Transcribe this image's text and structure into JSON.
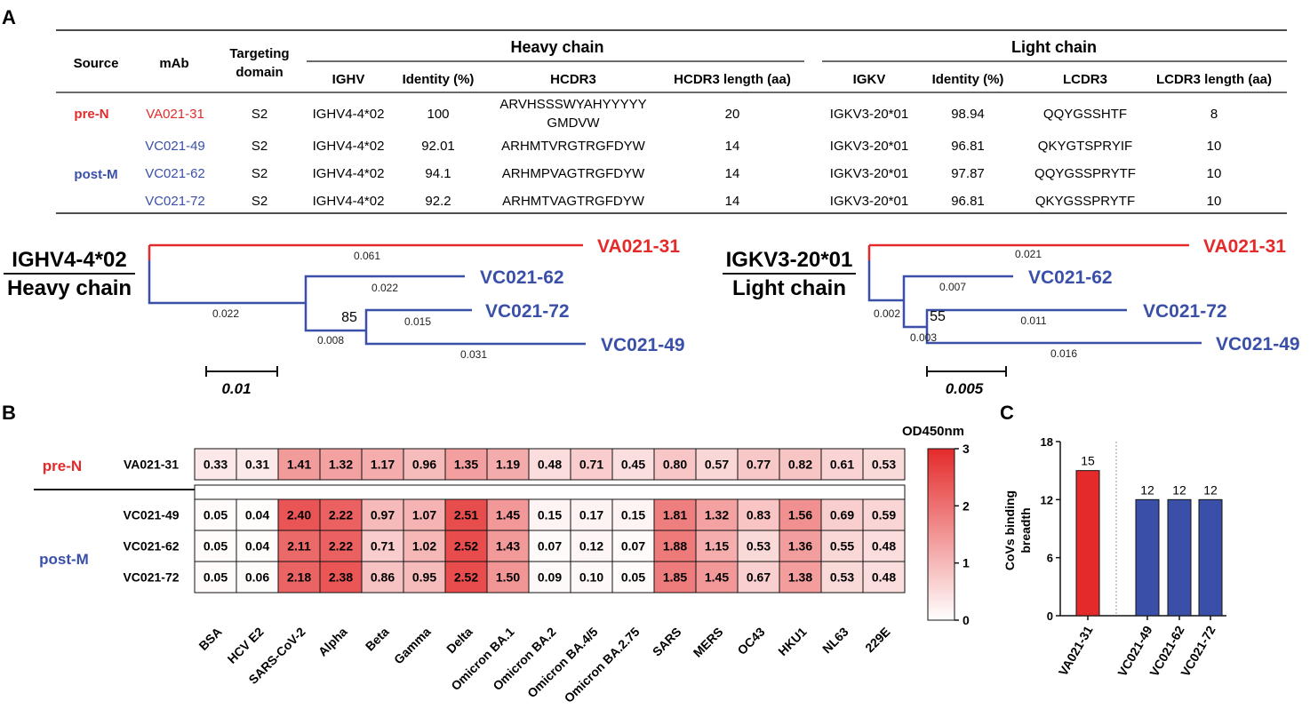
{
  "colors": {
    "pre": "#e42a2a",
    "post": "#3a4fa8",
    "black": "#111111"
  },
  "panel_labels": {
    "a": "A",
    "b": "B",
    "c": "C"
  },
  "table": {
    "headers": {
      "source": "Source",
      "mab": "mAb",
      "targeting_1": "Targeting",
      "targeting_2": "domain",
      "heavy": "Heavy chain",
      "light": "Light chain",
      "ighv": "IGHV",
      "h_identity": "Identity (%)",
      "hcdr3": "HCDR3",
      "hcdr3_len": "HCDR3 length (aa)",
      "igkv": "IGKV",
      "l_identity": "Identity (%)",
      "lcdr3": "LCDR3",
      "lcdr3_len": "LCDR3 length (aa)"
    },
    "groups": {
      "pre": "pre-N",
      "post": "post-M"
    },
    "rows": [
      {
        "mab": "VA021-31",
        "domain": "S2",
        "ighv": "IGHV4-4*02",
        "h_identity": "100",
        "hcdr3_line1": "ARVHSSSWYAHYYYYY",
        "hcdr3_line2": "GMDVW",
        "hcdr3_len": "20",
        "igkv": "IGKV3-20*01",
        "l_identity": "98.94",
        "lcdr3": "QQYGSSHTF",
        "lcdr3_len": "8"
      },
      {
        "mab": "VC021-49",
        "domain": "S2",
        "ighv": "IGHV4-4*02",
        "h_identity": "92.01",
        "hcdr3": "ARHMTVRGTRGFDYW",
        "hcdr3_len": "14",
        "igkv": "IGKV3-20*01",
        "l_identity": "96.81",
        "lcdr3": "QKYGTSPRYIF",
        "lcdr3_len": "10"
      },
      {
        "mab": "VC021-62",
        "domain": "S2",
        "ighv": "IGHV4-4*02",
        "h_identity": "94.1",
        "hcdr3": "ARHMPVAGTRGFDYW",
        "hcdr3_len": "14",
        "igkv": "IGKV3-20*01",
        "l_identity": "97.87",
        "lcdr3": "QQYGSSPRYTF",
        "lcdr3_len": "10"
      },
      {
        "mab": "VC021-72",
        "domain": "S2",
        "ighv": "IGHV4-4*02",
        "h_identity": "92.2",
        "hcdr3": "ARHMTVAGTRGFDYW",
        "hcdr3_len": "14",
        "igkv": "IGKV3-20*01",
        "l_identity": "96.81",
        "lcdr3": "QKYGSSPRYTF",
        "lcdr3_len": "10"
      }
    ]
  },
  "trees": {
    "heavy": {
      "title1": "IGHV4-4*02",
      "title2": "Heavy chain",
      "leaves": [
        "VA021-31",
        "VC021-62",
        "VC021-72",
        "VC021-49"
      ],
      "branch_labels": {
        "va31": "0.061",
        "root": "0.022",
        "vc62": "0.022",
        "inner": "0.008",
        "vc72": "0.015",
        "vc49": "0.031"
      },
      "bootstrap": "85",
      "scale": "0.01"
    },
    "light": {
      "title1": "IGKV3-20*01",
      "title2": "Light chain",
      "leaves": [
        "VA021-31",
        "VC021-62",
        "VC021-72",
        "VC021-49"
      ],
      "branch_labels": {
        "va31": "0.021",
        "root": "0.002",
        "vc62": "0.007",
        "inner": "0.003",
        "vc72": "0.011",
        "vc49": "0.016"
      },
      "bootstrap": "55",
      "scale": "0.005"
    }
  },
  "chart_data": [
    {
      "type": "heatmap",
      "title": "OD450nm",
      "groups": [
        {
          "name": "pre-N",
          "rows": [
            "VA021-31"
          ]
        },
        {
          "name": "post-M",
          "rows": [
            "VC021-49",
            "VC021-62",
            "VC021-72"
          ]
        }
      ],
      "rows": [
        "VA021-31",
        "VC021-49",
        "VC021-62",
        "VC021-72"
      ],
      "columns": [
        "BSA",
        "HCV E2",
        "SARS-CoV-2",
        "Alpha",
        "Beta",
        "Gamma",
        "Delta",
        "Omicron BA.1",
        "Omicron BA.2",
        "Omicron BA.4/5",
        "Omicron BA.2.75",
        "SARS",
        "MERS",
        "OC43",
        "HKU1",
        "NL63",
        "229E"
      ],
      "values": [
        [
          "0.33",
          "0.31",
          "1.41",
          "1.32",
          "1.17",
          "0.96",
          "1.35",
          "1.19",
          "0.48",
          "0.71",
          "0.45",
          "0.80",
          "0.57",
          "0.77",
          "0.82",
          "0.61",
          "0.53"
        ],
        [
          "0.05",
          "0.04",
          "2.40",
          "2.22",
          "0.97",
          "1.07",
          "2.51",
          "1.45",
          "0.15",
          "0.17",
          "0.15",
          "1.81",
          "1.32",
          "0.83",
          "1.56",
          "0.69",
          "0.59"
        ],
        [
          "0.05",
          "0.04",
          "2.11",
          "2.22",
          "0.71",
          "1.02",
          "2.52",
          "1.43",
          "0.07",
          "0.12",
          "0.07",
          "1.88",
          "1.15",
          "0.53",
          "1.36",
          "0.55",
          "0.48"
        ],
        [
          "0.05",
          "0.06",
          "2.18",
          "2.38",
          "0.86",
          "0.95",
          "2.52",
          "1.50",
          "0.09",
          "0.10",
          "0.05",
          "1.85",
          "1.45",
          "0.67",
          "1.38",
          "0.53",
          "0.48"
        ]
      ],
      "colorbar": {
        "min": 0,
        "max": 3,
        "ticks": [
          "0",
          "1",
          "2",
          "3"
        ],
        "low_color": "#ffffff",
        "high_color": "#e42a2a"
      }
    },
    {
      "type": "bar",
      "categories": [
        "VA021-31",
        "VC021-49",
        "VC021-62",
        "VC021-72"
      ],
      "values": [
        15,
        12,
        12,
        12
      ],
      "bar_colors": [
        "#e42a2a",
        "#3a4fa8",
        "#3a4fa8",
        "#3a4fa8"
      ],
      "ylabel_line1": "CoVs binding",
      "ylabel_line2": "breadth",
      "ylim": [
        0,
        18
      ],
      "yticks": [
        "0",
        "6",
        "12",
        "18"
      ]
    }
  ]
}
